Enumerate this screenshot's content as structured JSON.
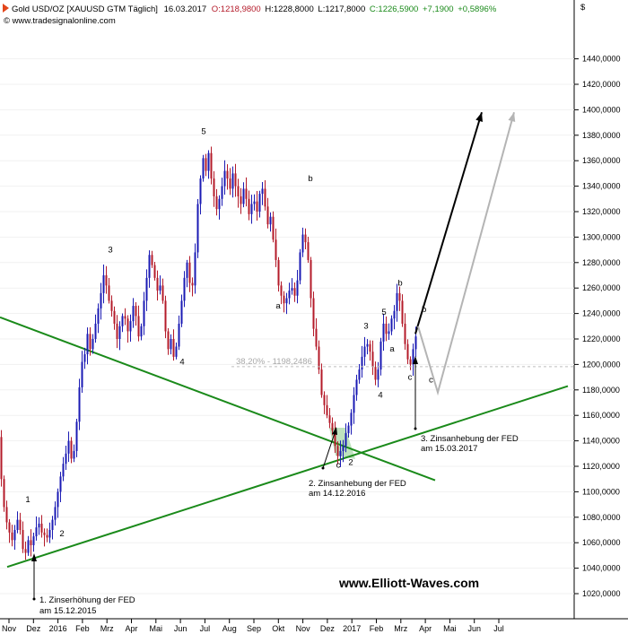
{
  "chart_data": {
    "type": "candlestick",
    "header": {
      "title": "Gold USD/OZ [XAUUSD GTM  Täglich]",
      "date": "16.03.2017",
      "open": "O:1218,9800",
      "high": "H:1228,8000",
      "low": "L:1217,8000",
      "close": "C:1226,5900",
      "change": "+7,1900",
      "change_pct": "+0,5896%"
    },
    "source": "© www.tradesignalonline.com",
    "currency_symbol": "$",
    "watermark": "www.Elliott-Waves.com",
    "ylim": [
      1005,
      1462
    ],
    "y_ticks": [
      "1020,0000",
      "1040,0000",
      "1060,0000",
      "1080,0000",
      "1100,0000",
      "1120,0000",
      "1140,0000",
      "1160,0000",
      "1180,0000",
      "1200,0000",
      "1220,0000",
      "1240,0000",
      "1260,0000",
      "1280,0000",
      "1300,0000",
      "1320,0000",
      "1340,0000",
      "1360,0000",
      "1380,0000",
      "1400,0000",
      "1420,0000",
      "1440,0000"
    ],
    "x_ticks": [
      "Nov",
      "Dez",
      "2016",
      "Feb",
      "Mrz",
      "Apr",
      "Mai",
      "Jun",
      "Jul",
      "Aug",
      "Sep",
      "Okt",
      "Nov",
      "Dez",
      "2017",
      "Feb",
      "Mrz",
      "Apr",
      "Mai",
      "Jun",
      "Jul"
    ],
    "price_path": [
      [
        0,
        1143
      ],
      [
        3,
        1110
      ],
      [
        6,
        1088
      ],
      [
        9,
        1076
      ],
      [
        12,
        1068
      ],
      [
        15,
        1062
      ],
      [
        18,
        1070
      ],
      [
        21,
        1078
      ],
      [
        24,
        1070
      ],
      [
        27,
        1055
      ],
      [
        30,
        1052
      ],
      [
        33,
        1062
      ],
      [
        36,
        1058
      ],
      [
        39,
        1065
      ],
      [
        42,
        1072
      ],
      [
        45,
        1075
      ],
      [
        48,
        1068
      ],
      [
        51,
        1066
      ],
      [
        54,
        1064
      ],
      [
        57,
        1070
      ],
      [
        60,
        1078
      ],
      [
        63,
        1088
      ],
      [
        66,
        1100
      ],
      [
        69,
        1112
      ],
      [
        72,
        1122
      ],
      [
        75,
        1130
      ],
      [
        78,
        1140
      ],
      [
        81,
        1126
      ],
      [
        84,
        1132
      ],
      [
        87,
        1155
      ],
      [
        90,
        1182
      ],
      [
        93,
        1202
      ],
      [
        96,
        1208
      ],
      [
        99,
        1224
      ],
      [
        102,
        1212
      ],
      [
        105,
        1220
      ],
      [
        108,
        1232
      ],
      [
        111,
        1244
      ],
      [
        114,
        1256
      ],
      [
        117,
        1270
      ],
      [
        120,
        1262
      ],
      [
        123,
        1250
      ],
      [
        126,
        1242
      ],
      [
        129,
        1232
      ],
      [
        132,
        1220
      ],
      [
        135,
        1230
      ],
      [
        138,
        1238
      ],
      [
        141,
        1236
      ],
      [
        144,
        1226
      ],
      [
        147,
        1234
      ],
      [
        150,
        1246
      ],
      [
        153,
        1238
      ],
      [
        156,
        1222
      ],
      [
        159,
        1230
      ],
      [
        162,
        1250
      ],
      [
        165,
        1268
      ],
      [
        168,
        1286
      ],
      [
        171,
        1278
      ],
      [
        174,
        1268
      ],
      [
        177,
        1258
      ],
      [
        180,
        1262
      ],
      [
        183,
        1250
      ],
      [
        186,
        1226
      ],
      [
        189,
        1212
      ],
      [
        192,
        1220
      ],
      [
        195,
        1206
      ],
      [
        198,
        1214
      ],
      [
        201,
        1232
      ],
      [
        204,
        1250
      ],
      [
        207,
        1268
      ],
      [
        210,
        1280
      ],
      [
        213,
        1264
      ],
      [
        216,
        1262
      ],
      [
        219,
        1288
      ],
      [
        222,
        1326
      ],
      [
        225,
        1346
      ],
      [
        228,
        1362
      ],
      [
        231,
        1352
      ],
      [
        234,
        1366
      ],
      [
        237,
        1346
      ],
      [
        240,
        1332
      ],
      [
        243,
        1322
      ],
      [
        246,
        1330
      ],
      [
        249,
        1340
      ],
      [
        252,
        1352
      ],
      [
        255,
        1346
      ],
      [
        258,
        1338
      ],
      [
        261,
        1350
      ],
      [
        264,
        1340
      ],
      [
        267,
        1332
      ],
      [
        270,
        1326
      ],
      [
        273,
        1338
      ],
      [
        276,
        1330
      ],
      [
        279,
        1318
      ],
      [
        282,
        1326
      ],
      [
        285,
        1328
      ],
      [
        288,
        1320
      ],
      [
        291,
        1334
      ],
      [
        294,
        1338
      ],
      [
        297,
        1324
      ],
      [
        300,
        1310
      ],
      [
        303,
        1316
      ],
      [
        306,
        1298
      ],
      [
        309,
        1282
      ],
      [
        312,
        1262
      ],
      [
        315,
        1254
      ],
      [
        318,
        1248
      ],
      [
        321,
        1252
      ],
      [
        324,
        1258
      ],
      [
        327,
        1260
      ],
      [
        330,
        1254
      ],
      [
        333,
        1266
      ],
      [
        336,
        1288
      ],
      [
        339,
        1302
      ],
      [
        342,
        1296
      ],
      [
        345,
        1282
      ],
      [
        348,
        1252
      ],
      [
        351,
        1228
      ],
      [
        354,
        1214
      ],
      [
        357,
        1196
      ],
      [
        360,
        1176
      ],
      [
        363,
        1168
      ],
      [
        366,
        1160
      ],
      [
        369,
        1154
      ],
      [
        372,
        1148
      ],
      [
        375,
        1136
      ],
      [
        378,
        1128
      ],
      [
        381,
        1132
      ],
      [
        384,
        1136
      ],
      [
        387,
        1146
      ],
      [
        390,
        1152
      ],
      [
        393,
        1162
      ],
      [
        396,
        1176
      ],
      [
        399,
        1188
      ],
      [
        402,
        1196
      ],
      [
        405,
        1206
      ],
      [
        408,
        1214
      ],
      [
        411,
        1216
      ],
      [
        414,
        1210
      ],
      [
        417,
        1198
      ],
      [
        420,
        1188
      ],
      [
        423,
        1196
      ],
      [
        426,
        1218
      ],
      [
        429,
        1232
      ],
      [
        432,
        1224
      ],
      [
        435,
        1226
      ],
      [
        438,
        1236
      ],
      [
        441,
        1242
      ],
      [
        444,
        1256
      ],
      [
        447,
        1250
      ],
      [
        450,
        1232
      ],
      [
        453,
        1216
      ],
      [
        456,
        1204
      ],
      [
        459,
        1200
      ],
      [
        462,
        1212
      ],
      [
        465,
        1222
      ]
    ],
    "wave_labels": [
      {
        "label": "1",
        "x": 31,
        "y": 1092
      },
      {
        "label": "2",
        "x": 69,
        "y": 1065
      },
      {
        "label": "3",
        "x": 123,
        "y": 1288
      },
      {
        "label": "4",
        "x": 203,
        "y": 1200
      },
      {
        "label": "5",
        "x": 227,
        "y": 1381
      },
      {
        "label": "a",
        "x": 310,
        "y": 1244
      },
      {
        "label": "b",
        "x": 346,
        "y": 1344
      },
      {
        "label": "c",
        "x": 377,
        "y": 1119
      },
      {
        "label": "2",
        "x": 391,
        "y": 1121
      },
      {
        "label": "3",
        "x": 408,
        "y": 1228
      },
      {
        "label": "4",
        "x": 424,
        "y": 1174
      },
      {
        "label": "5",
        "x": 428,
        "y": 1239
      },
      {
        "label": "a",
        "x": 437,
        "y": 1210
      },
      {
        "label": "b",
        "x": 446,
        "y": 1262
      },
      {
        "label": "c",
        "x": 457,
        "y": 1188
      }
    ],
    "fib_level": {
      "label": "38,20% - 1198,2486",
      "value": 1198.25
    },
    "annotations": [
      "1. Zinserhöhung der FED",
      "am 15.12.2015",
      "2. Zinsanhebung der FED",
      "am 14.12.2016",
      "3. Zinsanhebung der FED",
      "am 15.03.2017"
    ],
    "trendlines": [
      {
        "from": [
          0,
          1237
        ],
        "to": [
          485,
          1109
        ],
        "color": "#1a8a1a"
      },
      {
        "from": [
          8,
          1041
        ],
        "to": [
          633,
          1183
        ],
        "color": "#1a8a1a"
      }
    ],
    "projections": [
      {
        "points": [
          [
            463,
            1224
          ],
          [
            537,
            1398
          ]
        ],
        "color": "#000000"
      },
      {
        "points": [
          [
            466,
            1230
          ],
          [
            488,
            1178
          ],
          [
            573,
            1398
          ]
        ],
        "color": "#b4b4b4"
      }
    ],
    "colors": {
      "up": "#1b1bb4",
      "down": "#b41b2a",
      "trend": "#1a8a1a",
      "projection_main": "#000000",
      "projection_alt": "#b4b4b4",
      "fib": "#bdbdbd"
    }
  }
}
